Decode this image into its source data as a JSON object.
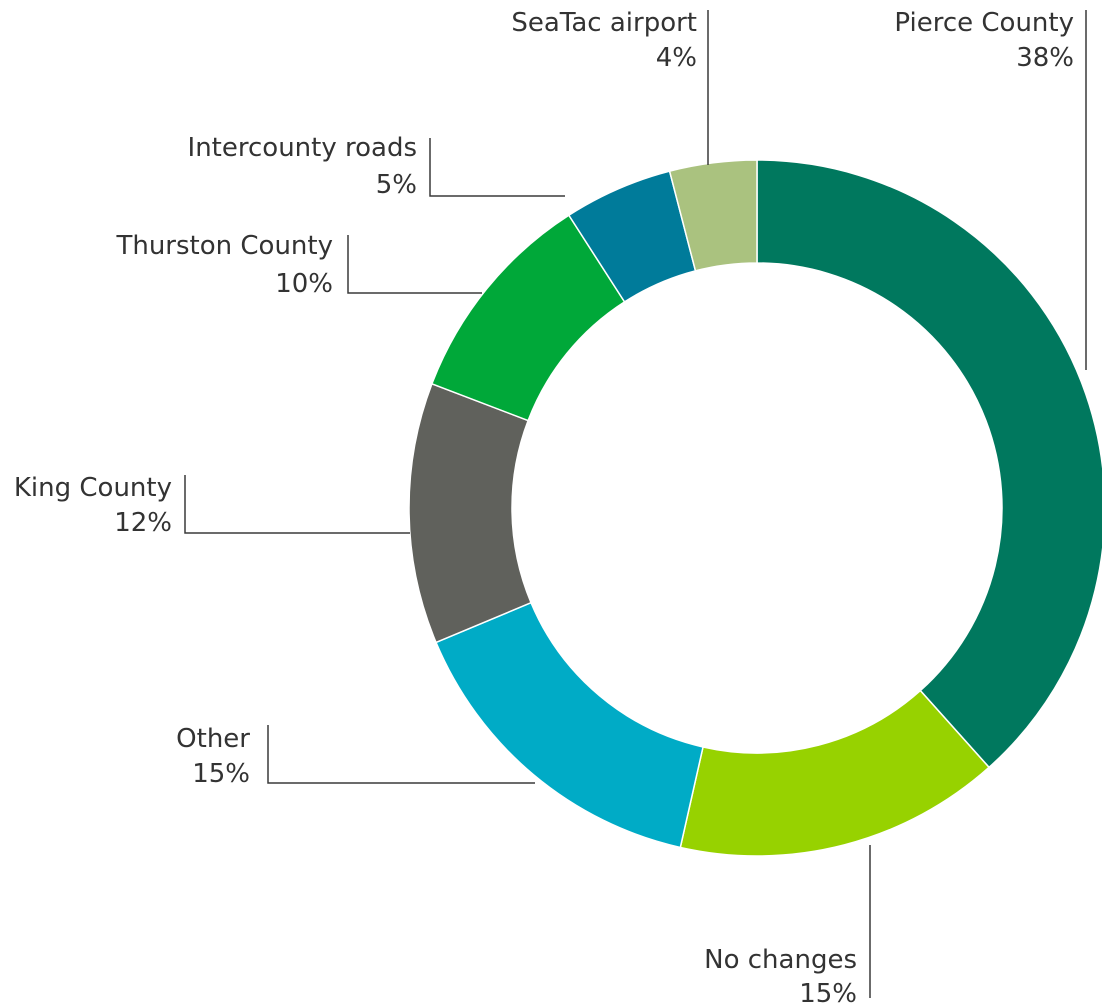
{
  "chart_data": {
    "type": "pie",
    "variant": "donut",
    "title": "",
    "legend": "none",
    "slices": [
      {
        "label": "Pierce County",
        "value": 38,
        "value_label": "38%",
        "color": "#00785e"
      },
      {
        "label": "No changes",
        "value": 15,
        "value_label": "15%",
        "color": "#97d200"
      },
      {
        "label": "Other",
        "value": 15,
        "value_label": "15%",
        "color": "#00abc6"
      },
      {
        "label": "King County",
        "value": 12,
        "value_label": "12%",
        "color": "#60615c"
      },
      {
        "label": "Thurston County",
        "value": 10,
        "value_label": "10%",
        "color": "#00a839"
      },
      {
        "label": "Intercounty roads",
        "value": 5,
        "value_label": "5%",
        "color": "#007b9a"
      },
      {
        "label": "SeaTac airport",
        "value": 4,
        "value_label": "4%",
        "color": "#aac27f"
      }
    ]
  }
}
